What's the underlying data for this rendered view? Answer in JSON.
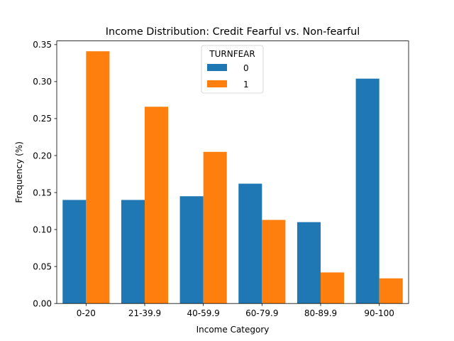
{
  "chart_data": {
    "type": "bar",
    "title": "Income Distribution: Credit Fearful vs. Non-fearful",
    "xlabel": "Income Category",
    "ylabel": "Frequency (%)",
    "categories": [
      "0-20",
      "21-39.9",
      "40-59.9",
      "60-79.9",
      "80-89.9",
      "90-100"
    ],
    "series": [
      {
        "name": "0",
        "color": "#1f77b4",
        "values": [
          0.14,
          0.14,
          0.145,
          0.162,
          0.11,
          0.304
        ]
      },
      {
        "name": "1",
        "color": "#ff7f0e",
        "values": [
          0.341,
          0.266,
          0.205,
          0.113,
          0.042,
          0.034
        ]
      }
    ],
    "ylim": [
      0,
      0.355
    ],
    "yticks": [
      0.0,
      0.05,
      0.1,
      0.15,
      0.2,
      0.25,
      0.3,
      0.35
    ],
    "ytick_labels": [
      "0.00",
      "0.05",
      "0.10",
      "0.15",
      "0.20",
      "0.25",
      "0.30",
      "0.35"
    ],
    "legend": {
      "title": "TURNFEAR",
      "position": "top-center"
    },
    "grid": false
  }
}
